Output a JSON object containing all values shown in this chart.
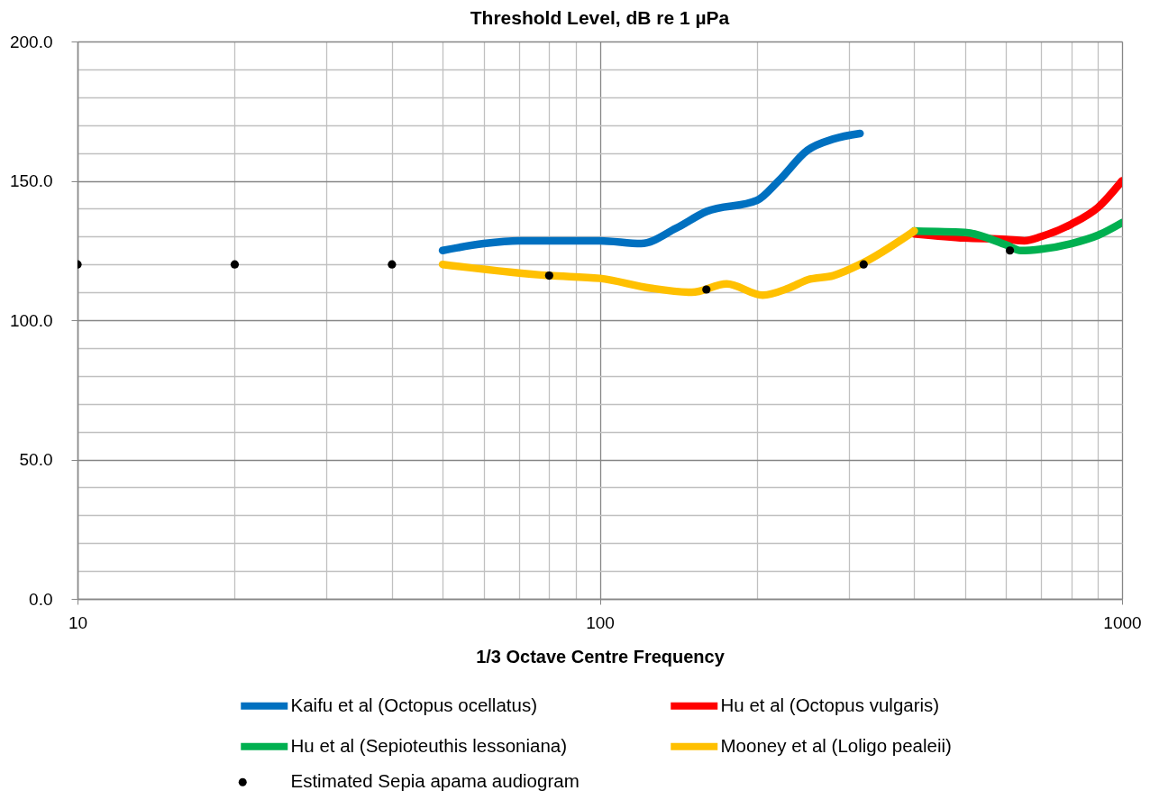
{
  "chart_data": {
    "type": "line",
    "title": "Threshold Level, dB re 1 µPa",
    "xlabel": "1/3 Octave Centre Frequency",
    "log": "x",
    "xlim": [
      10,
      1000
    ],
    "xticks": [
      10,
      {
        "value": 20,
        "label": null
      },
      {
        "value": 30,
        "label": null
      },
      {
        "value": 40,
        "label": null
      },
      {
        "value": 50,
        "label": null
      },
      {
        "value": 60,
        "label": null
      },
      {
        "value": 70,
        "label": null
      },
      {
        "value": 80,
        "label": null
      },
      {
        "value": 90,
        "label": null
      },
      100,
      {
        "value": 200,
        "label": null
      },
      {
        "value": 300,
        "label": null
      },
      {
        "value": 400,
        "label": null
      },
      {
        "value": 500,
        "label": null
      },
      {
        "value": 600,
        "label": null
      },
      {
        "value": 700,
        "label": null
      },
      {
        "value": 800,
        "label": null
      },
      {
        "value": 900,
        "label": null
      },
      1000
    ],
    "ylim": [
      0,
      200
    ],
    "yticks": [
      {
        "value": 0,
        "label": "0.0"
      },
      {
        "value": 10,
        "label": null
      },
      {
        "value": 20,
        "label": null
      },
      {
        "value": 30,
        "label": null
      },
      {
        "value": 40,
        "label": null
      },
      {
        "value": 50,
        "label": "50.0"
      },
      {
        "value": 60,
        "label": null
      },
      {
        "value": 70,
        "label": null
      },
      {
        "value": 80,
        "label": null
      },
      {
        "value": 90,
        "label": null
      },
      {
        "value": 100,
        "label": "100.0"
      },
      {
        "value": 110,
        "label": null
      },
      {
        "value": 120,
        "label": null
      },
      {
        "value": 130,
        "label": null
      },
      {
        "value": 140,
        "label": null
      },
      {
        "value": 150,
        "label": "150.0"
      },
      {
        "value": 160,
        "label": null
      },
      {
        "value": 170,
        "label": null
      },
      {
        "value": 180,
        "label": null
      },
      {
        "value": 190,
        "label": null
      },
      {
        "value": 200,
        "label": "200.0"
      }
    ],
    "grid": true,
    "legend": "bottom",
    "line_style": "solid",
    "series": [
      {
        "name": "Kaifu et al (Octopus ocellatus)",
        "color": "#0070c0",
        "x": [
          50,
          60,
          70,
          100,
          120,
          140,
          160,
          200,
          220,
          250,
          280,
          315
        ],
        "values": [
          125,
          127.5,
          128.5,
          128.5,
          127.5,
          133,
          139,
          143,
          150,
          161,
          165,
          167
        ]
      },
      {
        "name": "Hu et al (Octopus vulgaris)",
        "color": "#ff0000",
        "x": [
          400,
          500,
          600,
          650,
          700,
          800,
          900,
          1000
        ],
        "values": [
          131,
          129.5,
          129,
          128.5,
          130,
          134.5,
          140.5,
          150
        ]
      },
      {
        "name": "Hu et al (Sepioteuthis lessoniana)",
        "color": "#00b050",
        "x": [
          400,
          500,
          600,
          640,
          700,
          800,
          900,
          1000
        ],
        "values": [
          132,
          131.5,
          127,
          125,
          125.5,
          127.5,
          130.5,
          135
        ]
      },
      {
        "name": "Mooney et al (Loligo pealeii)",
        "color": "#ffc000",
        "x": [
          50,
          80,
          100,
          125,
          150,
          175,
          205,
          230,
          250,
          280,
          315,
          400
        ],
        "values": [
          120,
          116,
          115,
          111.5,
          110,
          113,
          109,
          111.5,
          114.5,
          116,
          120,
          132
        ]
      },
      {
        "name": "Estimated Sepia apama audiogram",
        "type": "scatter",
        "marker": "circle",
        "color": "#000000",
        "x": [
          10,
          20,
          40,
          80,
          160,
          320,
          610
        ],
        "values": [
          120,
          120,
          120,
          116,
          111,
          120,
          125
        ]
      }
    ]
  }
}
